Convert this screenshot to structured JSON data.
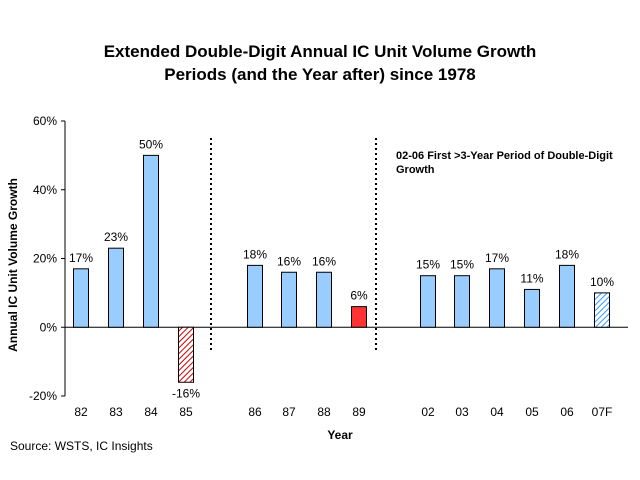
{
  "chart_data": {
    "type": "bar",
    "title_line1": "Extended Double-Digit Annual IC Unit Volume Growth",
    "title_line2": "Periods (and the Year after) since 1978",
    "xlabel": "Year",
    "ylabel": "Annual IC Unit Volume Growth",
    "ylim": [
      -20,
      60
    ],
    "yticks": [
      "60%",
      "40%",
      "20%",
      "0%",
      "-20%"
    ],
    "ytick_values": [
      60,
      40,
      20,
      0,
      -20
    ],
    "categories": [
      "82",
      "83",
      "84",
      "85",
      "86",
      "87",
      "88",
      "89",
      "02",
      "03",
      "04",
      "05",
      "06",
      "07F"
    ],
    "values": [
      17,
      23,
      50,
      -16,
      18,
      16,
      16,
      6,
      15,
      15,
      17,
      11,
      18,
      10
    ],
    "labels": [
      "17%",
      "23%",
      "50%",
      "-16%",
      "18%",
      "16%",
      "16%",
      "6%",
      "15%",
      "15%",
      "17%",
      "11%",
      "18%",
      "10%"
    ],
    "styles": [
      "solid",
      "solid",
      "solid",
      "red-hatch",
      "solid",
      "solid",
      "solid",
      "red-solid",
      "solid",
      "solid",
      "solid",
      "solid",
      "solid",
      "blue-hatch"
    ],
    "annotation_line1": "02-06 First >3-Year Period of Double-Digit",
    "annotation_line2": "Growth",
    "colors": {
      "bar_blue": "#99ccff",
      "bar_red": "#ff3333",
      "hatch_red": "#cc0000",
      "hatch_blue": "#3399ff",
      "outline": "#000000"
    }
  },
  "source": "Source: WSTS, IC Insights"
}
